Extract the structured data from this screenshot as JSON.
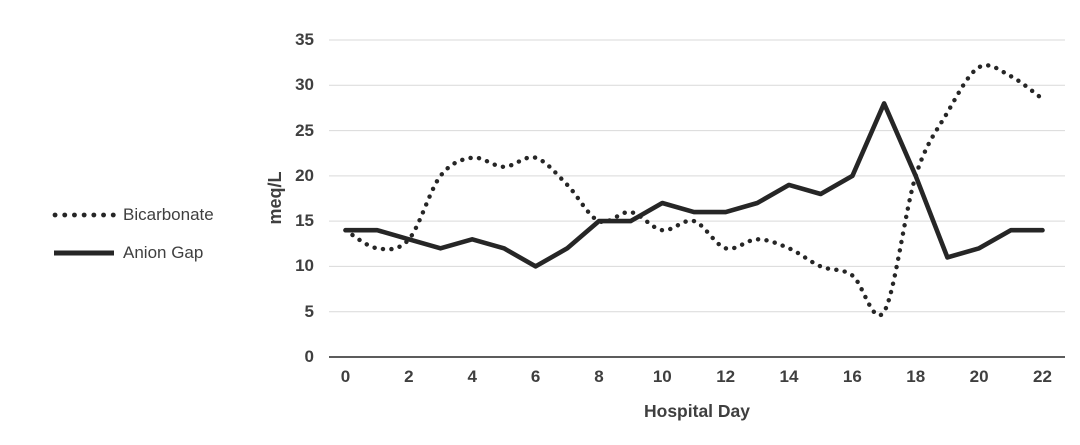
{
  "chart_data": {
    "type": "line",
    "title": "",
    "xlabel": "Hospital Day",
    "ylabel": "meq/L",
    "categories": [
      0,
      1,
      2,
      3,
      4,
      5,
      6,
      7,
      8,
      9,
      10,
      11,
      12,
      13,
      14,
      15,
      16,
      17,
      18,
      19,
      20,
      21,
      22
    ],
    "x_ticks": [
      0,
      2,
      4,
      6,
      8,
      10,
      12,
      14,
      16,
      18,
      20,
      22
    ],
    "y_ticks": [
      0,
      5,
      10,
      15,
      20,
      25,
      30,
      35
    ],
    "ylim": [
      0,
      35
    ],
    "grid": true,
    "legend_position": "left",
    "series": [
      {
        "name": "Bicarbonate",
        "style": "dotted",
        "values": [
          14,
          12,
          13,
          20,
          22,
          21,
          22,
          19,
          15,
          16,
          14,
          15,
          12,
          13,
          12,
          10,
          9,
          5,
          20,
          27,
          32,
          31,
          28.5
        ]
      },
      {
        "name": "Anion Gap",
        "style": "solid",
        "values": [
          14,
          14,
          13,
          12,
          13,
          12,
          10,
          12,
          15,
          15,
          17,
          16,
          16,
          17,
          19,
          18,
          20,
          28,
          20,
          11,
          12,
          14,
          14
        ]
      }
    ],
    "colors": {
      "line": "#262626",
      "grid": "#d9d9d9",
      "text": "#3f3f3f",
      "background": "#ffffff"
    }
  }
}
